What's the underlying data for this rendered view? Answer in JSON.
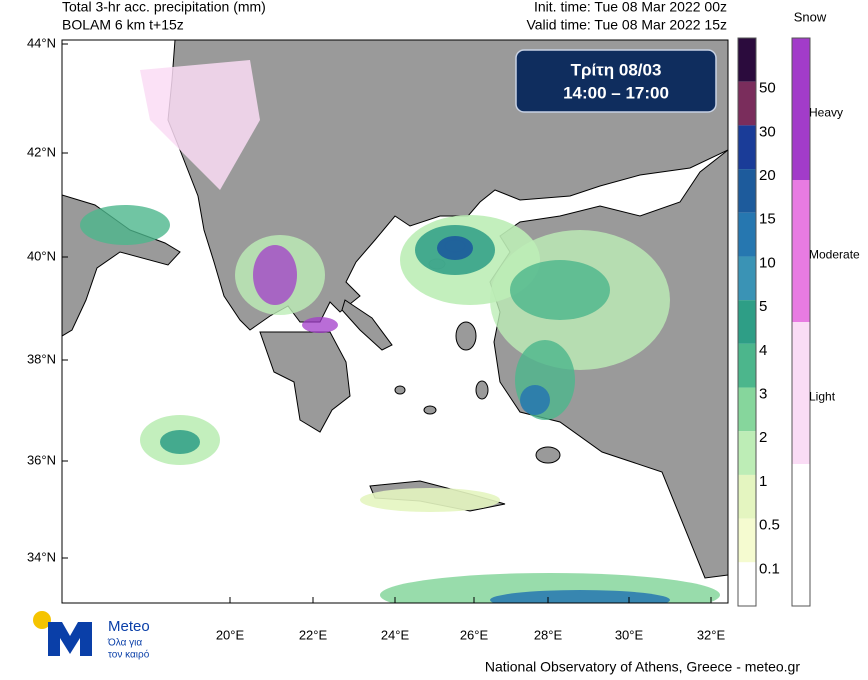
{
  "header": {
    "title": [
      "Total 3-hr acc. precipitation (mm)",
      "BOLAM 6 km t+15z"
    ],
    "times": [
      "Init. time: Tue 08 Mar 2022 00z",
      "Valid time: Tue 08 Mar 2022 15z"
    ]
  },
  "time_box": {
    "day": "Τρίτη 08/03",
    "hours": "14:00 – 17:00"
  },
  "map": {
    "lat_labels": [
      "44°N",
      "42°N",
      "40°N",
      "38°N",
      "36°N",
      "34°N"
    ],
    "lon_labels": [
      "20°E",
      "22°E",
      "24°E",
      "26°E",
      "28°E",
      "30°E",
      "32°E"
    ]
  },
  "rain_scale": {
    "labels": [
      "50",
      "30",
      "20",
      "15",
      "10",
      "5",
      "4",
      "3",
      "2",
      "1",
      "0.5",
      "0.1"
    ],
    "colors": [
      "#2b0b3d",
      "#7a2d5c",
      "#1a3c98",
      "#1d5b9c",
      "#2677b0",
      "#3a93b5",
      "#2e9e86",
      "#4cb68c",
      "#86d69c",
      "#bdedb6",
      "#e4f5c0",
      "#f5fbd0",
      "#ffffff"
    ]
  },
  "snow_scale": {
    "title": "Snow",
    "labels": [
      "Heavy",
      "Moderate",
      "Light"
    ],
    "colors": [
      "#a23cc9",
      "#e87be2",
      "#fadcf5",
      "#ffffff"
    ]
  },
  "logo": {
    "name": "Meteo",
    "tagline": [
      "Όλα για",
      "τον καιρό"
    ]
  },
  "footer": "National Observatory of Athens, Greece - meteo.gr"
}
